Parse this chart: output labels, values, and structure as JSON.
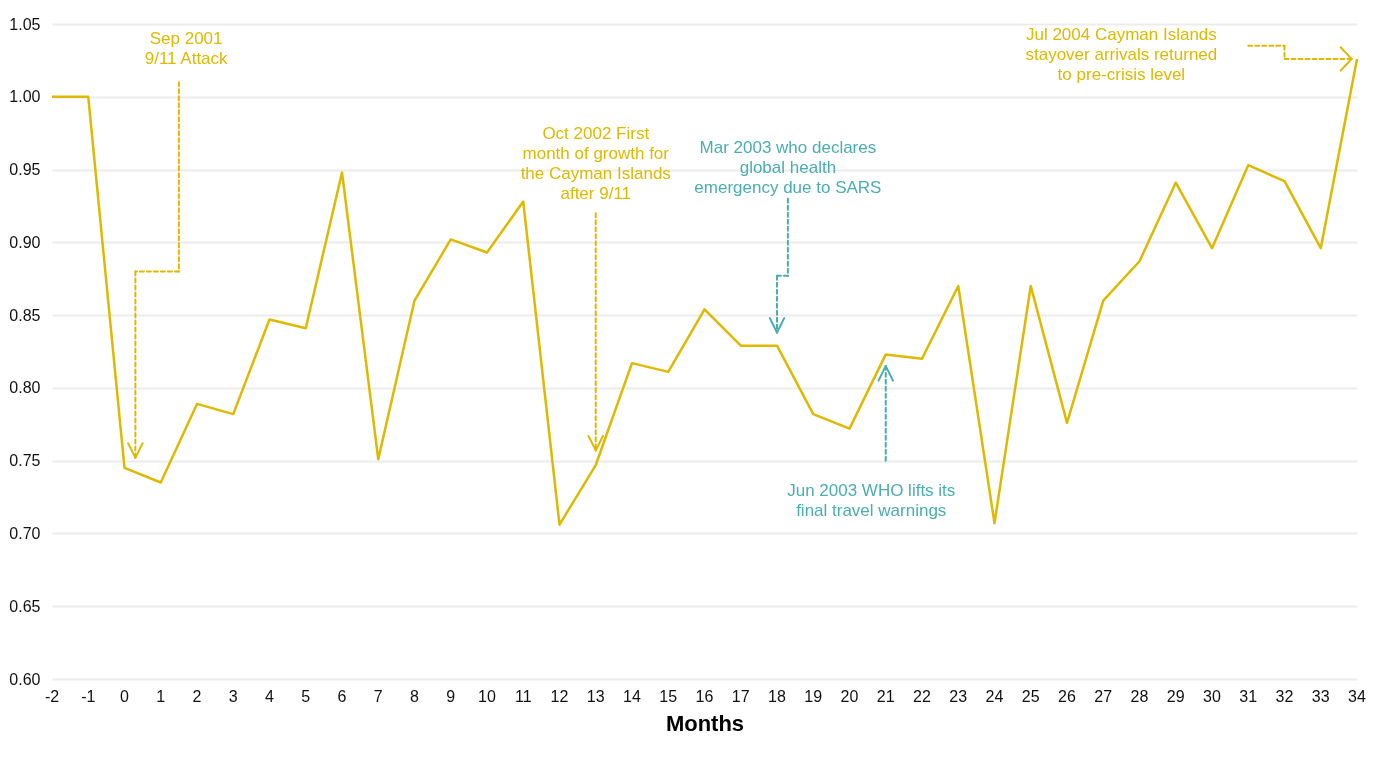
{
  "chart_data": {
    "type": "line",
    "xlabel": "Months",
    "x": [
      -2,
      -1,
      0,
      1,
      2,
      3,
      4,
      5,
      6,
      7,
      8,
      9,
      10,
      11,
      12,
      13,
      14,
      15,
      16,
      17,
      18,
      19,
      20,
      21,
      22,
      23,
      24,
      25,
      26,
      27,
      28,
      29,
      30,
      31,
      32,
      33,
      34
    ],
    "series": [
      {
        "color": "#dfb900",
        "values": [
          1.0,
          1.0,
          0.745,
          0.735,
          0.789,
          0.782,
          0.847,
          0.841,
          0.948,
          0.751,
          0.86,
          0.902,
          0.893,
          0.928,
          0.706,
          0.747,
          0.817,
          0.811,
          0.854,
          0.829,
          0.829,
          0.782,
          0.772,
          0.823,
          0.82,
          0.87,
          0.707,
          0.87,
          0.776,
          0.86,
          0.887,
          0.941,
          0.896,
          0.953,
          0.942,
          0.896,
          1.026
        ]
      }
    ],
    "xlim": [
      -2,
      34
    ],
    "xticks": [
      -2,
      -1,
      0,
      1,
      2,
      3,
      4,
      5,
      6,
      7,
      8,
      9,
      10,
      11,
      12,
      13,
      14,
      15,
      16,
      17,
      18,
      19,
      20,
      21,
      22,
      23,
      24,
      25,
      26,
      27,
      28,
      29,
      30,
      31,
      32,
      33,
      34
    ],
    "ylim": [
      0.6,
      1.05
    ],
    "yticks": [
      {
        "value": 0.6,
        "label": "0.60"
      },
      {
        "value": 0.65,
        "label": "0.65"
      },
      {
        "value": 0.7,
        "label": "0.70"
      },
      {
        "value": 0.75,
        "label": "0.75"
      },
      {
        "value": 0.8,
        "label": "0.80"
      },
      {
        "value": 0.85,
        "label": "0.85"
      },
      {
        "value": 0.9,
        "label": "0.90"
      },
      {
        "value": 0.95,
        "label": "0.95"
      },
      {
        "value": 1.0,
        "label": "1.00"
      },
      {
        "value": 1.05,
        "label": "1.05"
      }
    ],
    "grid": "y",
    "marker": "none",
    "line_style": "solid",
    "annotations": [
      "Sep 2001 9/11 Attack",
      {
        "text": "Oct 2002 First month of growth for the Cayman Islands after 9/11",
        "x": 13,
        "y": 0.757
      },
      "Mar 2003 who declares global health emergency due to SARS",
      {
        "text": "Jun 2003 WHO lifts its final travel warnings",
        "x": 21,
        "y": 0.815
      },
      "Jul 2004 Cayman Islands stayover arrivals returned to pre-crisis level"
    ]
  }
}
